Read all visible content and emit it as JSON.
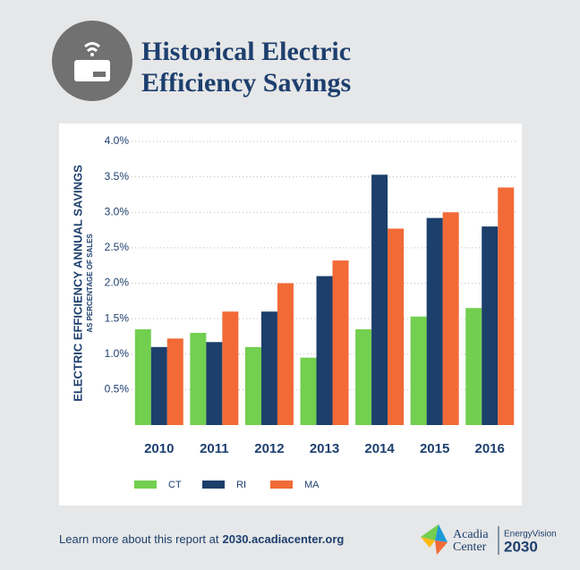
{
  "header": {
    "title_lines": [
      "Historical Electric",
      "Efficiency Savings"
    ]
  },
  "chart_data": {
    "type": "bar",
    "y_label": "ELECTRIC EFFICIENCY ANNUAL SAVINGS",
    "y_sublabel": "AS PERCENTAGE OF SALES",
    "categories": [
      "2010",
      "2011",
      "2012",
      "2013",
      "2014",
      "2015",
      "2016"
    ],
    "series": [
      {
        "name": "CT",
        "color": "#72cf4f",
        "values": [
          1.35,
          1.3,
          1.1,
          0.95,
          1.35,
          1.53,
          1.65
        ]
      },
      {
        "name": "RI",
        "color": "#1c3f6b",
        "values": [
          1.1,
          1.17,
          1.6,
          2.1,
          3.53,
          2.92,
          2.8
        ]
      },
      {
        "name": "MA",
        "color": "#f26a36",
        "values": [
          1.22,
          1.6,
          2.0,
          2.32,
          2.77,
          3.0,
          3.35
        ]
      }
    ],
    "ylim": [
      0,
      4
    ],
    "yticks": [
      {
        "value": 0.5,
        "label": "0.5%"
      },
      {
        "value": 1,
        "label": "1.0%"
      },
      {
        "value": 1.5,
        "label": "1.5%"
      },
      {
        "value": 2,
        "label": "2.0%"
      },
      {
        "value": 2.5,
        "label": "2.5%"
      },
      {
        "value": 3,
        "label": "3.0%"
      },
      {
        "value": 3.5,
        "label": "3.5%"
      },
      {
        "value": 4,
        "label": "4.0%"
      }
    ],
    "grid": true
  },
  "footer": {
    "text": "Learn more about this report at",
    "link": "2030.acadiacenter.org",
    "logo": {
      "name_lines": [
        "Acadia",
        "Center"
      ],
      "program": "EnergyVision",
      "year": "2030"
    }
  }
}
